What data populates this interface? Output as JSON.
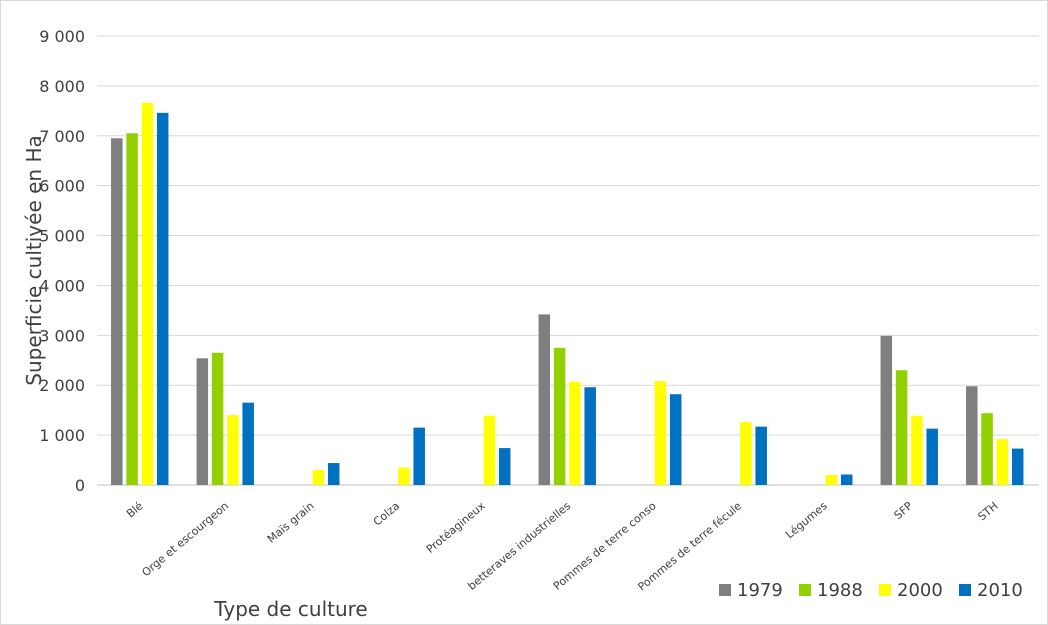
{
  "chart_data": {
    "type": "bar",
    "title": "",
    "xlabel": "Type de culture",
    "ylabel": "Superficie cultivée en Ha",
    "ylim": [
      0,
      9000
    ],
    "yticks": [
      0,
      1000,
      2000,
      3000,
      4000,
      5000,
      6000,
      7000,
      8000,
      9000
    ],
    "ytick_labels": [
      "0",
      "1 000",
      "2 000",
      "3 000",
      "4 000",
      "5 000",
      "6 000",
      "7 000",
      "8 000",
      "9 000"
    ],
    "grid": true,
    "legend_position": "bottom-right",
    "categories": [
      "Blé",
      "Orge et escourgeon",
      "Maïs grain",
      "Colza",
      "Protéagineux",
      "betteraves industrielles",
      "Pommes de terre conso",
      "Pommes de terre fécule",
      "Légumes",
      "SFP",
      "STH"
    ],
    "series": [
      {
        "name": "1979",
        "color": "#7f7f7f",
        "values": [
          6950,
          2540,
          0,
          0,
          0,
          3420,
          0,
          0,
          0,
          2990,
          1980
        ]
      },
      {
        "name": "1988",
        "color": "#92d000",
        "values": [
          7050,
          2650,
          0,
          0,
          0,
          2750,
          0,
          0,
          0,
          2300,
          1440
        ]
      },
      {
        "name": "2000",
        "color": "#ffff00",
        "values": [
          7660,
          1400,
          300,
          350,
          1390,
          2070,
          2080,
          1260,
          200,
          1390,
          920
        ]
      },
      {
        "name": "2010",
        "color": "#0070c0",
        "values": [
          7460,
          1650,
          440,
          1150,
          740,
          1960,
          1820,
          1170,
          210,
          1130,
          730
        ]
      }
    ]
  }
}
